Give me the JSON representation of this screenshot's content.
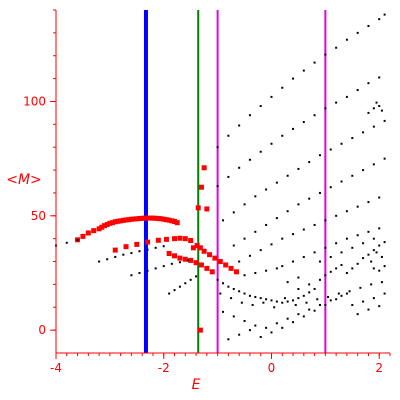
{
  "chart_data": {
    "type": "scatter",
    "title": "",
    "xlabel": "E",
    "ylabel": "<M>",
    "xlim": [
      -4.0,
      2.2
    ],
    "ylim": [
      -10,
      140
    ],
    "grid": false,
    "x_ticks": [
      {
        "value": -4,
        "label": "-4"
      },
      {
        "value": -2,
        "label": "-2"
      },
      {
        "value": 0,
        "label": "0"
      },
      {
        "value": 2,
        "label": "2"
      }
    ],
    "y_ticks": [
      {
        "value": 0,
        "label": "0"
      },
      {
        "value": 50,
        "label": "50"
      },
      {
        "value": 100,
        "label": "100"
      }
    ],
    "x_minor_step": 0.2,
    "y_minor_step": 10,
    "axis_color": "#ff0000",
    "vertical_lines": [
      {
        "x": -2.33,
        "color": "#0000ff",
        "width": 4
      },
      {
        "x": -1.36,
        "color": "#008000",
        "width": 2
      },
      {
        "x": -1.0,
        "color": "#e000e0",
        "width": 2
      },
      {
        "x": 1.0,
        "color": "#e000e0",
        "width": 2
      }
    ],
    "series": [
      {
        "color": "#ff0000",
        "marker": "square",
        "points": [
          [
            -3.15,
            45.0
          ],
          [
            -3.1,
            45.7
          ],
          [
            -3.05,
            46.2
          ],
          [
            -3.0,
            46.7
          ],
          [
            -2.95,
            47.0
          ],
          [
            -2.9,
            47.4
          ],
          [
            -2.85,
            47.6
          ],
          [
            -2.8,
            47.8
          ],
          [
            -2.75,
            48.0
          ],
          [
            -2.7,
            48.2
          ],
          [
            -2.65,
            48.3
          ],
          [
            -2.6,
            48.5
          ],
          [
            -2.55,
            48.6
          ],
          [
            -2.5,
            48.7
          ],
          [
            -2.45,
            48.8
          ],
          [
            -2.4,
            48.9
          ],
          [
            -2.35,
            49.0
          ],
          [
            -2.3,
            49.0
          ],
          [
            -2.25,
            49.0
          ],
          [
            -2.2,
            49.0
          ],
          [
            -2.15,
            48.9
          ],
          [
            -2.1,
            48.8
          ],
          [
            -2.05,
            48.7
          ],
          [
            -2.0,
            48.5
          ],
          [
            -1.95,
            48.3
          ],
          [
            -1.9,
            48.1
          ],
          [
            -1.85,
            47.8
          ],
          [
            -1.8,
            47.5
          ],
          [
            -1.75,
            47.0
          ],
          [
            -3.4,
            42.5
          ],
          [
            -3.3,
            43.5
          ],
          [
            -3.2,
            44.3
          ],
          [
            -3.6,
            39.5
          ],
          [
            -3.5,
            41.0
          ],
          [
            -2.9,
            35.0
          ],
          [
            -2.7,
            36.5
          ],
          [
            -2.5,
            37.5
          ],
          [
            -2.3,
            38.5
          ],
          [
            -2.1,
            39.3
          ],
          [
            -1.95,
            39.7
          ],
          [
            -1.8,
            40.0
          ],
          [
            -1.7,
            40.2
          ],
          [
            -1.6,
            40.0
          ],
          [
            -1.5,
            39.2
          ],
          [
            -1.9,
            33.5
          ],
          [
            -1.8,
            32.5
          ],
          [
            -1.7,
            31.5
          ],
          [
            -1.6,
            31.0
          ],
          [
            -1.5,
            30.5
          ],
          [
            -1.4,
            29.5
          ],
          [
            -1.3,
            28.5
          ],
          [
            -1.2,
            27.0
          ],
          [
            -1.1,
            25.5
          ],
          [
            -1.45,
            36.0
          ],
          [
            -1.38,
            37.0
          ],
          [
            -1.32,
            36.0
          ],
          [
            -1.25,
            34.5
          ],
          [
            -1.15,
            33.0
          ],
          [
            -1.05,
            31.5
          ],
          [
            -0.95,
            30.0
          ],
          [
            -0.85,
            28.5
          ],
          [
            -0.75,
            27.0
          ],
          [
            -0.65,
            25.5
          ],
          [
            -1.36,
            53.5
          ],
          [
            -1.3,
            62.5
          ],
          [
            -1.25,
            71.0
          ],
          [
            -1.32,
            0.0
          ],
          [
            -1.2,
            53.0
          ]
        ]
      },
      {
        "color": "#000000",
        "marker": "dot",
        "points": [
          [
            -4.0,
            37.0
          ],
          [
            -3.8,
            38.2
          ],
          [
            -3.6,
            39.4
          ],
          [
            -3.2,
            30.0
          ],
          [
            -3.05,
            31.0
          ],
          [
            -2.9,
            32.0
          ],
          [
            -2.75,
            33.0
          ],
          [
            -2.6,
            33.7
          ],
          [
            -2.45,
            34.5
          ],
          [
            -2.3,
            35.2
          ],
          [
            -2.15,
            36.0
          ],
          [
            -2.0,
            36.7
          ],
          [
            -2.6,
            24.0
          ],
          [
            -2.45,
            25.0
          ],
          [
            -2.3,
            26.0
          ],
          [
            -2.15,
            27.0
          ],
          [
            -2.0,
            28.0
          ],
          [
            -1.85,
            29.0
          ],
          [
            -1.7,
            29.7
          ],
          [
            -1.55,
            30.5
          ],
          [
            -1.9,
            16.0
          ],
          [
            -1.8,
            17.5
          ],
          [
            -1.7,
            19.0
          ],
          [
            -1.6,
            20.5
          ],
          [
            -1.5,
            22.0
          ],
          [
            -1.4,
            23.5
          ],
          [
            -1.0,
            80.0
          ],
          [
            -0.8,
            85.0
          ],
          [
            -0.6,
            89.5
          ],
          [
            -0.4,
            94.0
          ],
          [
            -0.2,
            98.0
          ],
          [
            0.0,
            102.0
          ],
          [
            0.2,
            106.0
          ],
          [
            0.4,
            110.0
          ],
          [
            0.6,
            113.5
          ],
          [
            0.8,
            117.0
          ],
          [
            1.0,
            120.5
          ],
          [
            1.2,
            123.5
          ],
          [
            1.4,
            127.0
          ],
          [
            1.6,
            130.0
          ],
          [
            1.8,
            133.0
          ],
          [
            2.0,
            136.0
          ],
          [
            2.1,
            138.0
          ],
          [
            -1.0,
            63.0
          ],
          [
            -0.8,
            67.0
          ],
          [
            -0.6,
            71.0
          ],
          [
            -0.4,
            74.5
          ],
          [
            -0.2,
            78.0
          ],
          [
            0.0,
            81.5
          ],
          [
            0.2,
            85.0
          ],
          [
            0.4,
            88.0
          ],
          [
            0.6,
            91.0
          ],
          [
            0.8,
            94.0
          ],
          [
            1.0,
            97.0
          ],
          [
            1.2,
            99.5
          ],
          [
            1.4,
            102.0
          ],
          [
            1.6,
            105.0
          ],
          [
            1.8,
            108.0
          ],
          [
            2.0,
            110.5
          ],
          [
            -0.9,
            48.0
          ],
          [
            -0.7,
            51.5
          ],
          [
            -0.5,
            55.0
          ],
          [
            -0.3,
            58.5
          ],
          [
            -0.1,
            61.5
          ],
          [
            0.1,
            64.5
          ],
          [
            0.3,
            67.5
          ],
          [
            0.5,
            70.5
          ],
          [
            0.7,
            73.5
          ],
          [
            0.9,
            76.5
          ],
          [
            1.1,
            79.0
          ],
          [
            1.3,
            81.5
          ],
          [
            1.5,
            84.0
          ],
          [
            1.7,
            86.5
          ],
          [
            1.9,
            89.0
          ],
          [
            2.1,
            91.5
          ],
          [
            -0.7,
            37.0
          ],
          [
            -0.5,
            40.0
          ],
          [
            -0.3,
            43.0
          ],
          [
            -0.1,
            46.0
          ],
          [
            0.1,
            49.0
          ],
          [
            0.3,
            52.0
          ],
          [
            0.5,
            55.0
          ],
          [
            0.7,
            57.5
          ],
          [
            0.9,
            60.0
          ],
          [
            1.1,
            62.5
          ],
          [
            1.3,
            65.0
          ],
          [
            1.5,
            67.5
          ],
          [
            1.7,
            70.0
          ],
          [
            1.9,
            72.5
          ],
          [
            2.1,
            75.0
          ],
          [
            -0.6,
            30.0
          ],
          [
            -0.4,
            32.5
          ],
          [
            -0.2,
            35.0
          ],
          [
            0.0,
            37.5
          ],
          [
            0.2,
            40.0
          ],
          [
            0.4,
            42.0
          ],
          [
            0.6,
            44.0
          ],
          [
            0.8,
            46.0
          ],
          [
            1.0,
            48.0
          ],
          [
            1.2,
            50.0
          ],
          [
            1.4,
            52.0
          ],
          [
            1.6,
            54.0
          ],
          [
            1.8,
            56.0
          ],
          [
            2.0,
            58.0
          ],
          [
            0.2,
            28.0
          ],
          [
            0.4,
            30.0
          ],
          [
            0.6,
            32.0
          ],
          [
            0.8,
            34.0
          ],
          [
            1.0,
            36.0
          ],
          [
            1.2,
            38.0
          ],
          [
            1.4,
            40.0
          ],
          [
            1.6,
            41.5
          ],
          [
            1.8,
            43.0
          ],
          [
            2.0,
            44.5
          ],
          [
            1.8,
            95.0
          ],
          [
            1.9,
            97.0
          ],
          [
            2.0,
            98.0
          ],
          [
            1.95,
            99.5
          ],
          [
            2.05,
            96.0
          ],
          [
            -1.0,
            22.0
          ],
          [
            -0.9,
            20.5
          ],
          [
            -0.8,
            19.0
          ],
          [
            -0.7,
            18.0
          ],
          [
            -0.6,
            17.0
          ],
          [
            -0.5,
            16.0
          ],
          [
            -0.4,
            15.0
          ],
          [
            -0.3,
            14.5
          ],
          [
            -0.2,
            14.0
          ],
          [
            -0.1,
            13.5
          ],
          [
            0.0,
            13.0
          ],
          [
            0.1,
            12.5
          ],
          [
            0.2,
            12.0
          ],
          [
            0.3,
            12.5
          ],
          [
            0.4,
            13.0
          ],
          [
            0.5,
            14.0
          ],
          [
            0.6,
            15.0
          ],
          [
            0.7,
            16.5
          ],
          [
            0.8,
            18.0
          ],
          [
            -0.95,
            16.0
          ],
          [
            -0.75,
            14.0
          ],
          [
            -0.55,
            12.0
          ],
          [
            -0.35,
            11.0
          ],
          [
            -0.15,
            12.0
          ],
          [
            0.05,
            10.0
          ],
          [
            0.25,
            14.0
          ],
          [
            0.45,
            11.0
          ],
          [
            0.65,
            12.0
          ],
          [
            0.85,
            13.5
          ],
          [
            1.05,
            14.5
          ],
          [
            1.25,
            16.0
          ],
          [
            1.45,
            17.0
          ],
          [
            1.65,
            18.5
          ],
          [
            1.85,
            20.0
          ],
          [
            2.05,
            21.0
          ],
          [
            -0.9,
            8.0
          ],
          [
            -0.7,
            6.0
          ],
          [
            -0.5,
            4.0
          ],
          [
            -0.3,
            2.0
          ],
          [
            -0.1,
            1.0
          ],
          [
            0.1,
            3.0
          ],
          [
            0.3,
            5.0
          ],
          [
            0.5,
            7.0
          ],
          [
            0.7,
            9.0
          ],
          [
            0.9,
            11.0
          ],
          [
            1.1,
            13.0
          ],
          [
            1.3,
            15.0
          ],
          [
            -0.8,
            -4.0
          ],
          [
            -0.6,
            -2.0
          ],
          [
            -0.4,
            0.0
          ],
          [
            -0.2,
            -3.0
          ],
          [
            0.0,
            -1.0
          ],
          [
            0.2,
            1.0
          ],
          [
            0.4,
            3.5
          ],
          [
            0.6,
            6.0
          ],
          [
            0.8,
            8.5
          ],
          [
            1.0,
            11.0
          ],
          [
            1.2,
            13.5
          ],
          [
            1.4,
            16.0
          ],
          [
            1.4,
            25.0
          ],
          [
            1.5,
            27.0
          ],
          [
            1.6,
            29.0
          ],
          [
            1.7,
            31.5
          ],
          [
            1.8,
            33.0
          ],
          [
            1.9,
            35.0
          ],
          [
            2.0,
            37.0
          ],
          [
            2.1,
            38.5
          ],
          [
            1.9,
            27.0
          ],
          [
            2.0,
            26.0
          ],
          [
            2.1,
            28.0
          ],
          [
            1.85,
            30.0
          ],
          [
            2.05,
            32.0
          ],
          [
            1.95,
            34.0
          ],
          [
            0.9,
            22.0
          ],
          [
            1.0,
            24.0
          ],
          [
            1.1,
            25.5
          ],
          [
            1.2,
            27.0
          ],
          [
            1.3,
            28.5
          ],
          [
            0.7,
            20.0
          ],
          [
            0.5,
            18.0
          ],
          [
            1.5,
            11.0
          ],
          [
            1.7,
            12.5
          ],
          [
            1.9,
            14.0
          ],
          [
            2.1,
            16.0
          ],
          [
            1.6,
            7.0
          ],
          [
            1.8,
            9.0
          ],
          [
            2.0,
            10.5
          ],
          [
            0.9,
            30.0
          ],
          [
            1.1,
            32.0
          ],
          [
            1.3,
            34.0
          ],
          [
            1.5,
            36.0
          ],
          [
            1.7,
            38.0
          ],
          [
            1.9,
            40.0
          ],
          [
            -0.5,
            24.0
          ],
          [
            -0.3,
            25.0
          ],
          [
            -0.1,
            26.0
          ],
          [
            0.1,
            27.0
          ],
          [
            0.3,
            21.0
          ],
          [
            0.5,
            23.0
          ]
        ]
      }
    ]
  }
}
